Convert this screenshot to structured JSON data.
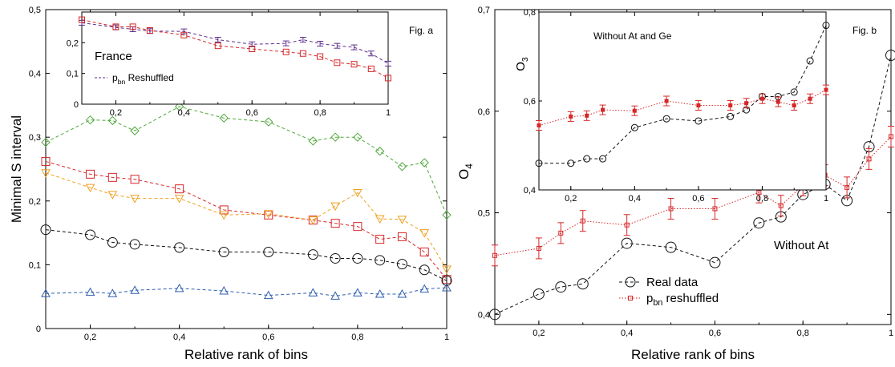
{
  "chart_data": [
    {
      "id": "a",
      "type": "line",
      "annotation": "Fig. a",
      "xlabel": "Relative rank of bins",
      "ylabel": "Minimal S interval",
      "xlim": [
        0.1,
        1.0
      ],
      "ylim": [
        0,
        0.5
      ],
      "xticks": [
        "0,2",
        "0,4",
        "0,6",
        "0,8",
        "1"
      ],
      "yticks": [
        "0",
        "0,1",
        "0,2",
        "0,3",
        "0,4",
        "0,5"
      ],
      "series": [
        {
          "color": "#4ea83a",
          "marker": "diamond",
          "x": [
            0.1,
            0.2,
            0.25,
            0.3,
            0.4,
            0.5,
            0.6,
            0.7,
            0.75,
            0.8,
            0.85,
            0.9,
            0.95,
            1.0
          ],
          "y": [
            0.292,
            0.327,
            0.326,
            0.31,
            0.348,
            0.33,
            0.324,
            0.294,
            0.3,
            0.3,
            0.278,
            0.254,
            0.26,
            0.178
          ]
        },
        {
          "color": "#d62728",
          "marker": "square",
          "x": [
            0.1,
            0.2,
            0.25,
            0.3,
            0.4,
            0.5,
            0.6,
            0.7,
            0.75,
            0.8,
            0.85,
            0.9,
            0.95,
            1.0
          ],
          "y": [
            0.262,
            0.242,
            0.237,
            0.234,
            0.219,
            0.186,
            0.178,
            0.17,
            0.165,
            0.16,
            0.14,
            0.144,
            0.12,
            0.077
          ]
        },
        {
          "color": "#f0a020",
          "marker": "triangle-down",
          "x": [
            0.1,
            0.2,
            0.25,
            0.3,
            0.4,
            0.5,
            0.6,
            0.7,
            0.75,
            0.8,
            0.85,
            0.9,
            0.95,
            1.0
          ],
          "y": [
            0.244,
            0.221,
            0.21,
            0.204,
            0.204,
            0.178,
            0.18,
            0.17,
            0.192,
            0.213,
            0.172,
            0.171,
            0.15,
            0.093
          ]
        },
        {
          "color": "#111111",
          "marker": "circle",
          "x": [
            0.1,
            0.2,
            0.25,
            0.3,
            0.4,
            0.5,
            0.6,
            0.7,
            0.75,
            0.8,
            0.85,
            0.9,
            0.95,
            1.0
          ],
          "y": [
            0.155,
            0.147,
            0.135,
            0.132,
            0.127,
            0.12,
            0.12,
            0.116,
            0.11,
            0.11,
            0.107,
            0.101,
            0.092,
            0.075
          ]
        },
        {
          "color": "#2f5fb0",
          "marker": "triangle-up",
          "x": [
            0.1,
            0.2,
            0.25,
            0.3,
            0.4,
            0.5,
            0.6,
            0.7,
            0.75,
            0.8,
            0.85,
            0.9,
            0.95,
            1.0
          ],
          "y": [
            0.055,
            0.057,
            0.055,
            0.06,
            0.063,
            0.059,
            0.052,
            0.056,
            0.051,
            0.056,
            0.054,
            0.054,
            0.062,
            0.064
          ]
        }
      ],
      "inset": {
        "title": "France",
        "xlim": [
          0.1,
          1.0
        ],
        "ylim": [
          0,
          0.3
        ],
        "xticks": [
          "0,2",
          "0,4",
          "0,6",
          "0,8",
          "1"
        ],
        "yticks": [
          "0",
          "0,1",
          "0,2"
        ],
        "legend": [
          {
            "label_main": "p",
            "label_sub": "bn",
            "label_rest": " Reshuffled",
            "color": "#5b2d8c"
          }
        ],
        "series": [
          {
            "color": "#5b2d8c",
            "marker": "errorbar",
            "x": [
              0.1,
              0.2,
              0.25,
              0.3,
              0.4,
              0.5,
              0.6,
              0.7,
              0.75,
              0.8,
              0.85,
              0.9,
              0.95,
              1.0
            ],
            "y": [
              0.265,
              0.25,
              0.244,
              0.238,
              0.237,
              0.21,
              0.195,
              0.198,
              0.21,
              0.197,
              0.19,
              0.185,
              0.165,
              0.132
            ]
          },
          {
            "color": "#d62728",
            "marker": "square",
            "x": [
              0.1,
              0.2,
              0.25,
              0.3,
              0.4,
              0.5,
              0.6,
              0.7,
              0.75,
              0.8,
              0.85,
              0.9,
              0.95,
              1.0
            ],
            "y": [
              0.275,
              0.252,
              0.252,
              0.24,
              0.225,
              0.19,
              0.18,
              0.17,
              0.165,
              0.155,
              0.135,
              0.13,
              0.115,
              0.085
            ]
          }
        ]
      }
    },
    {
      "id": "b",
      "type": "line",
      "annotation": "Fig. b",
      "xlabel": "Relative rank of bins",
      "ylabel_main": "O",
      "ylabel_sub": "4",
      "xlim": [
        0.1,
        1.0
      ],
      "ylim": [
        0.39,
        0.7
      ],
      "xticks": [
        "0,2",
        "0,4",
        "0,6",
        "0,8",
        "1"
      ],
      "yticks": [
        "0,4",
        "0,5",
        "0,6",
        "0,7"
      ],
      "text_annotation": "Without At",
      "legend": [
        {
          "label_main": "Real data",
          "label_sub": "",
          "label_rest": "",
          "color": "#111111"
        },
        {
          "label_main": "p",
          "label_sub": "bn",
          "label_rest": " reshuffled",
          "color": "#d62728"
        }
      ],
      "series": [
        {
          "color": "#111111",
          "marker": "circle",
          "x": [
            0.1,
            0.2,
            0.25,
            0.3,
            0.4,
            0.5,
            0.6,
            0.7,
            0.75,
            0.8,
            0.85,
            0.9,
            0.95,
            1.0
          ],
          "y": [
            0.4,
            0.42,
            0.427,
            0.43,
            0.47,
            0.466,
            0.451,
            0.49,
            0.496,
            0.518,
            0.528,
            0.512,
            0.565,
            0.655
          ]
        },
        {
          "color": "#d62728",
          "marker": "square-errorbar",
          "x": [
            0.1,
            0.2,
            0.25,
            0.3,
            0.4,
            0.5,
            0.6,
            0.7,
            0.75,
            0.8,
            0.85,
            0.9,
            0.95,
            1.0
          ],
          "y": [
            0.458,
            0.465,
            0.48,
            0.492,
            0.488,
            0.504,
            0.504,
            0.52,
            0.507,
            0.527,
            0.537,
            0.525,
            0.553,
            0.575
          ]
        }
      ],
      "inset": {
        "title": "Without At and Ge",
        "ylabel_main": "O",
        "ylabel_sub": "3",
        "xlim": [
          0.1,
          1.0
        ],
        "ylim": [
          0.4,
          0.8
        ],
        "xticks": [
          "0,2",
          "0,4",
          "0,6",
          "0,8",
          "1"
        ],
        "yticks": [
          "0,4",
          "0,6",
          "0,8"
        ],
        "series": [
          {
            "color": "#111111",
            "marker": "circle",
            "x": [
              0.1,
              0.2,
              0.25,
              0.3,
              0.4,
              0.5,
              0.6,
              0.7,
              0.75,
              0.8,
              0.85,
              0.9,
              0.95,
              1.0
            ],
            "y": [
              0.46,
              0.46,
              0.47,
              0.47,
              0.54,
              0.56,
              0.555,
              0.565,
              0.58,
              0.61,
              0.61,
              0.62,
              0.69,
              0.77
            ]
          },
          {
            "color": "#d62728",
            "marker": "square-errorbar",
            "x": [
              0.1,
              0.2,
              0.25,
              0.3,
              0.4,
              0.5,
              0.6,
              0.7,
              0.75,
              0.8,
              0.85,
              0.9,
              0.95,
              1.0
            ],
            "y": [
              0.545,
              0.565,
              0.567,
              0.58,
              0.578,
              0.6,
              0.59,
              0.59,
              0.595,
              0.605,
              0.598,
              0.59,
              0.605,
              0.625
            ]
          }
        ]
      }
    }
  ]
}
